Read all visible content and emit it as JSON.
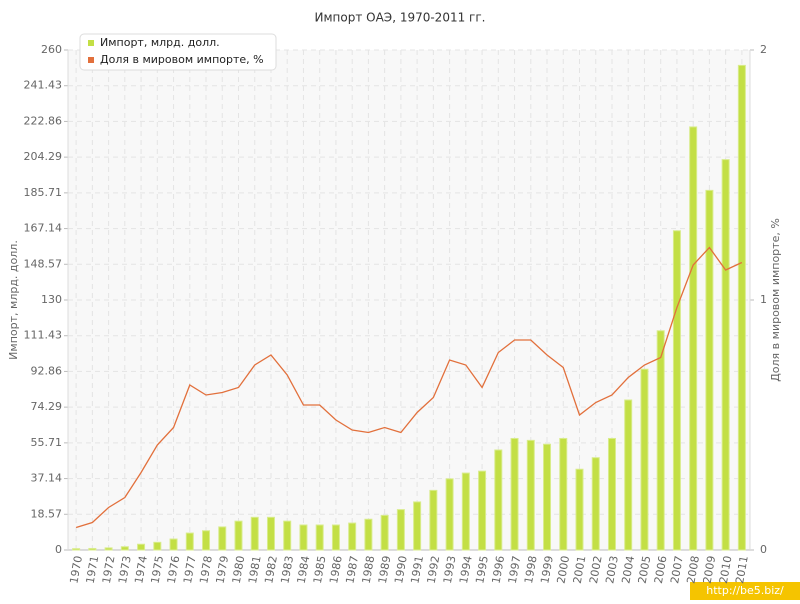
{
  "chart_data": {
    "type": "bar-line",
    "title": "Импорт ОАЭ, 1970-2011 гг.",
    "y_label": "Импорт, млрд. долл.",
    "y2_label": "Доля в мировом импорте, %",
    "watermark": "http://be5.biz/",
    "grid": true,
    "legend": "top-left",
    "categories": [
      "1970",
      "1971",
      "1972",
      "1973",
      "1974",
      "1975",
      "1976",
      "1977",
      "1978",
      "1979",
      "1980",
      "1981",
      "1982",
      "1983",
      "1984",
      "1985",
      "1986",
      "1987",
      "1988",
      "1989",
      "1990",
      "1991",
      "1992",
      "1993",
      "1994",
      "1995",
      "1996",
      "1997",
      "1998",
      "1999",
      "2000",
      "2001",
      "2002",
      "2003",
      "2004",
      "2005",
      "2006",
      "2007",
      "2008",
      "2009",
      "2010",
      "2011"
    ],
    "series": [
      {
        "name": "Импорт, млрд. долл.",
        "type": "bar",
        "color": "#c3df45",
        "values": [
          0.7,
          0.8,
          1.1,
          1.7,
          3,
          4,
          5.7,
          8.8,
          10,
          12,
          15,
          17,
          17,
          15,
          13,
          13,
          13,
          14,
          16,
          18,
          21,
          25,
          31,
          37,
          40,
          41,
          52,
          58,
          57,
          55,
          58,
          42,
          48,
          58,
          78,
          94,
          114,
          166,
          220,
          187,
          203,
          252
        ]
      },
      {
        "name": "Доля в мировом импорте, %",
        "type": "line",
        "axis": "y2",
        "color": "#e2703c",
        "values": [
          0.09,
          0.11,
          0.17,
          0.21,
          0.31,
          0.42,
          0.49,
          0.66,
          0.62,
          0.63,
          0.65,
          0.74,
          0.78,
          0.7,
          0.58,
          0.58,
          0.52,
          0.48,
          0.47,
          0.49,
          0.47,
          0.55,
          0.61,
          0.76,
          0.74,
          0.65,
          0.79,
          0.84,
          0.84,
          0.78,
          0.73,
          0.54,
          0.59,
          0.62,
          0.69,
          0.74,
          0.77,
          0.97,
          1.14,
          1.21,
          1.12,
          1.15
        ]
      }
    ],
    "ylim": [
      0,
      260
    ],
    "yticks": [
      0,
      18.57,
      37.14,
      55.71,
      74.29,
      92.86,
      111.43,
      130,
      148.57,
      167.14,
      185.71,
      204.29,
      222.86,
      241.43,
      260
    ],
    "y2lim": [
      0,
      2
    ],
    "y2ticks": [
      0,
      1,
      2
    ]
  }
}
